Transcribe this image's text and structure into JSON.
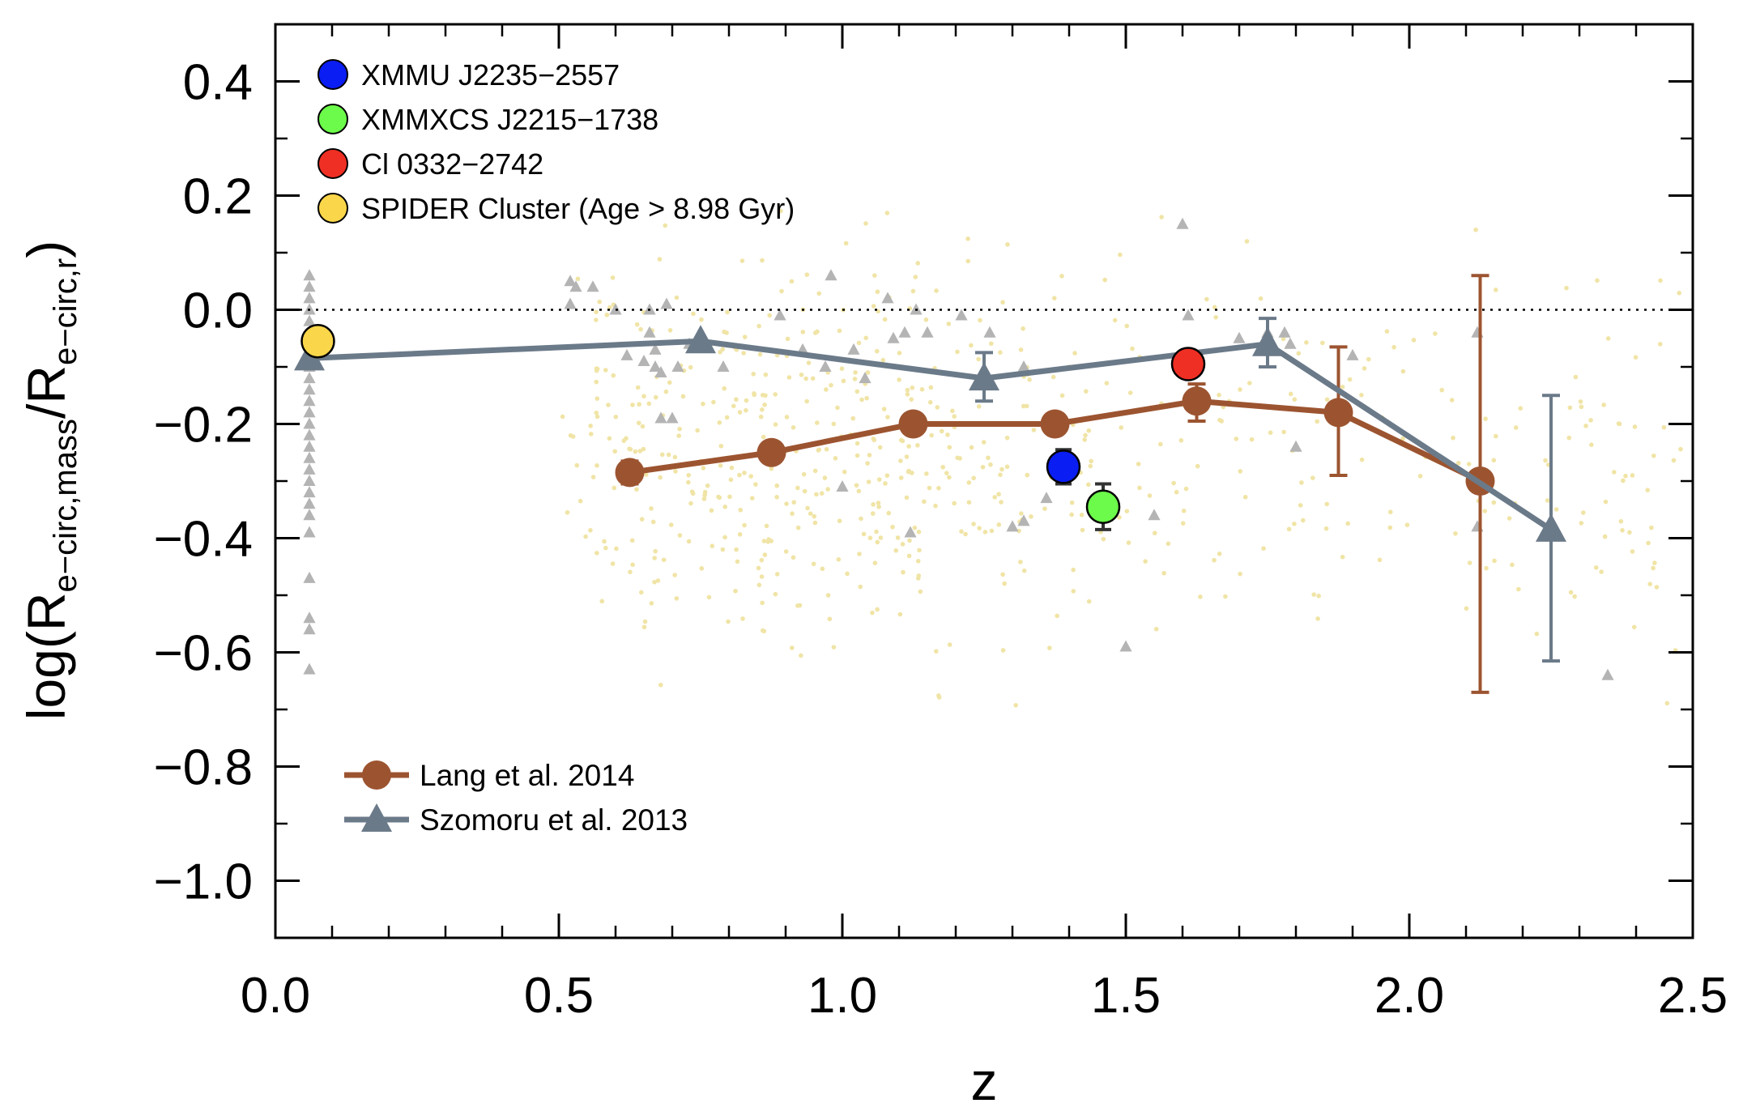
{
  "chart_data": {
    "type": "scatter",
    "xlabel": "z",
    "ylabel_parts": {
      "log": "log(R",
      "num_sub": "e−circ,mass",
      "slash": "/R",
      "den_sub": "e−circ,r",
      "close": ")"
    },
    "xlim": [
      0.0,
      2.5
    ],
    "ylim": [
      -1.1,
      0.5
    ],
    "x_ticks": [
      0.0,
      0.5,
      1.0,
      1.5,
      2.0,
      2.5
    ],
    "x_tick_labels": [
      "0.0",
      "0.5",
      "1.0",
      "1.5",
      "2.0",
      "2.5"
    ],
    "y_ticks": [
      0.4,
      0.2,
      0.0,
      -0.2,
      -0.4,
      -0.6,
      -0.8,
      -1.0
    ],
    "y_tick_labels": [
      "0.4",
      "0.2",
      "0.0",
      "−0.2",
      "−0.4",
      "−0.6",
      "−0.8",
      "−1.0"
    ],
    "reference_line": {
      "y": 0.0,
      "style": "dotted"
    },
    "legend_top": [
      {
        "label": "XMMU J2235−2557",
        "color": "#0a1df2"
      },
      {
        "label": "XMMXCS J2215−1738",
        "color": "#6cfb4a"
      },
      {
        "label": "Cl 0332−2742",
        "color": "#ef2f23"
      },
      {
        "label": "SPIDER Cluster (Age > 8.98 Gyr)",
        "color": "#fad64a"
      }
    ],
    "legend_bottom": [
      {
        "label": "Lang et al. 2014",
        "color": "#9c5430",
        "marker": "circle"
      },
      {
        "label": "Szomoru et al. 2013",
        "color": "#6b7a89",
        "marker": "triangle"
      }
    ],
    "clusters": [
      {
        "name": "XMMU J2235−2557",
        "x": 1.39,
        "y": -0.275,
        "err": 0.03,
        "color": "#0a1df2"
      },
      {
        "name": "XMMXCS J2215−1738",
        "x": 1.46,
        "y": -0.345,
        "err": 0.04,
        "color": "#6cfb4a"
      },
      {
        "name": "Cl 0332−2742",
        "x": 1.61,
        "y": -0.095,
        "err": 0.0,
        "color": "#ef2f23"
      },
      {
        "name": "SPIDER Cluster (Age > 8.98 Gyr)",
        "x": 0.075,
        "y": -0.055,
        "err": 0.0,
        "color": "#fad64a"
      }
    ],
    "series": [
      {
        "name": "Lang et al. 2014",
        "color": "#9c5430",
        "marker": "circle",
        "points": [
          {
            "x": 0.625,
            "y": -0.285,
            "err_lo": 0.02,
            "err_hi": 0.02
          },
          {
            "x": 0.875,
            "y": -0.25,
            "err_lo": 0.01,
            "err_hi": 0.01
          },
          {
            "x": 1.125,
            "y": -0.2,
            "err_lo": 0.01,
            "err_hi": 0.01
          },
          {
            "x": 1.375,
            "y": -0.2,
            "err_lo": 0.01,
            "err_hi": 0.01
          },
          {
            "x": 1.625,
            "y": -0.16,
            "err_lo": 0.035,
            "err_hi": 0.03
          },
          {
            "x": 1.875,
            "y": -0.18,
            "err_lo": 0.11,
            "err_hi": 0.115
          },
          {
            "x": 2.125,
            "y": -0.3,
            "err_lo": 0.37,
            "err_hi": 0.36
          }
        ]
      },
      {
        "name": "Szomoru et al. 2013",
        "color": "#6b7a89",
        "marker": "triangle",
        "points": [
          {
            "x": 0.06,
            "y": -0.085,
            "err_lo": 0.0,
            "err_hi": 0.0
          },
          {
            "x": 0.75,
            "y": -0.055,
            "err_lo": 0.0,
            "err_hi": 0.0
          },
          {
            "x": 1.25,
            "y": -0.12,
            "err_lo": 0.04,
            "err_hi": 0.045
          },
          {
            "x": 1.75,
            "y": -0.06,
            "err_lo": 0.04,
            "err_hi": 0.045
          },
          {
            "x": 2.25,
            "y": -0.385,
            "err_lo": 0.23,
            "err_hi": 0.235
          }
        ]
      }
    ],
    "background_triangles": [
      [
        0.06,
        0.06
      ],
      [
        0.06,
        0.04
      ],
      [
        0.06,
        0.02
      ],
      [
        0.06,
        0.0
      ],
      [
        0.06,
        -0.02
      ],
      [
        0.06,
        -0.04
      ],
      [
        0.06,
        -0.06
      ],
      [
        0.06,
        -0.08
      ],
      [
        0.06,
        -0.1
      ],
      [
        0.06,
        -0.12
      ],
      [
        0.06,
        -0.14
      ],
      [
        0.06,
        -0.16
      ],
      [
        0.06,
        -0.18
      ],
      [
        0.06,
        -0.2
      ],
      [
        0.06,
        -0.22
      ],
      [
        0.06,
        -0.24
      ],
      [
        0.06,
        -0.26
      ],
      [
        0.06,
        -0.28
      ],
      [
        0.06,
        -0.3
      ],
      [
        0.06,
        -0.32
      ],
      [
        0.06,
        -0.34
      ],
      [
        0.06,
        -0.36
      ],
      [
        0.06,
        -0.39
      ],
      [
        0.06,
        -0.47
      ],
      [
        0.06,
        -0.54
      ],
      [
        0.06,
        -0.56
      ],
      [
        0.06,
        -0.63
      ],
      [
        0.52,
        0.05
      ],
      [
        0.53,
        0.04
      ],
      [
        0.56,
        0.04
      ],
      [
        0.52,
        0.01
      ],
      [
        0.6,
        0.0
      ],
      [
        0.62,
        -0.08
      ],
      [
        0.65,
        -0.09
      ],
      [
        0.66,
        0.0
      ],
      [
        0.66,
        -0.04
      ],
      [
        0.67,
        -0.07
      ],
      [
        0.67,
        -0.1
      ],
      [
        0.68,
        -0.11
      ],
      [
        0.68,
        -0.19
      ],
      [
        0.69,
        0.01
      ],
      [
        0.7,
        -0.19
      ],
      [
        0.71,
        -0.1
      ],
      [
        0.73,
        -0.06
      ],
      [
        0.79,
        -0.1
      ],
      [
        0.89,
        -0.01
      ],
      [
        0.93,
        -0.07
      ],
      [
        0.97,
        -0.1
      ],
      [
        0.98,
        0.06
      ],
      [
        1.0,
        -0.31
      ],
      [
        1.02,
        -0.07
      ],
      [
        1.04,
        -0.12
      ],
      [
        1.08,
        0.02
      ],
      [
        1.09,
        -0.05
      ],
      [
        1.11,
        -0.04
      ],
      [
        1.12,
        -0.39
      ],
      [
        1.13,
        0.0
      ],
      [
        1.15,
        -0.04
      ],
      [
        1.21,
        -0.01
      ],
      [
        1.26,
        -0.04
      ],
      [
        1.3,
        -0.38
      ],
      [
        1.32,
        -0.37
      ],
      [
        1.32,
        -0.1
      ],
      [
        1.36,
        -0.33
      ],
      [
        1.5,
        -0.59
      ],
      [
        1.55,
        -0.36
      ],
      [
        1.6,
        0.15
      ],
      [
        1.61,
        -0.01
      ],
      [
        1.7,
        -0.05
      ],
      [
        1.75,
        -0.04
      ],
      [
        1.78,
        -0.04
      ],
      [
        1.79,
        -0.06
      ],
      [
        1.8,
        -0.24
      ],
      [
        1.9,
        -0.08
      ],
      [
        2.12,
        -0.04
      ],
      [
        2.12,
        -0.38
      ],
      [
        2.35,
        -0.64
      ]
    ],
    "background_points_description": "SPIDER galaxies (pale yellow dots), z 0.5–2.5",
    "background_dot_color": "#f0e4a6"
  }
}
